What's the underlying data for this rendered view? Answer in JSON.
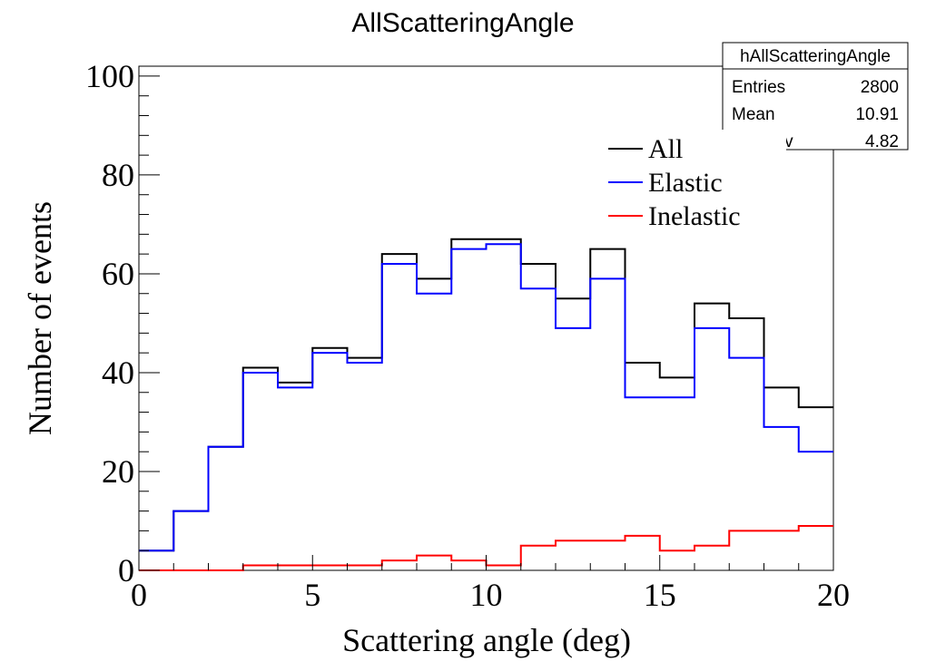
{
  "chart_data": {
    "type": "histogram",
    "title": "AllScatteringAngle",
    "xlabel": "Scattering angle (deg)",
    "ylabel": "Number of events",
    "xlim": [
      0,
      20
    ],
    "ylim": [
      0,
      102
    ],
    "bin_edges": [
      0,
      1,
      2,
      3,
      4,
      5,
      6,
      7,
      8,
      9,
      10,
      11,
      12,
      13,
      14,
      15,
      16,
      17,
      18,
      19,
      20
    ],
    "x_ticks": [
      "0",
      "5",
      "10",
      "15",
      "20"
    ],
    "y_ticks": [
      "0",
      "20",
      "40",
      "60",
      "80",
      "100"
    ],
    "grid": false,
    "legend_placement": "top-right",
    "series": [
      {
        "name": "All",
        "color": "#000000",
        "values": [
          4,
          12,
          25,
          41,
          38,
          45,
          43,
          64,
          59,
          67,
          67,
          62,
          55,
          65,
          42,
          39,
          54,
          51,
          37,
          33
        ]
      },
      {
        "name": "Elastic",
        "color": "#0000ff",
        "values": [
          4,
          12,
          25,
          40,
          37,
          44,
          42,
          62,
          56,
          65,
          66,
          57,
          49,
          59,
          35,
          35,
          49,
          43,
          29,
          24
        ]
      },
      {
        "name": "Inelastic",
        "color": "#ff0000",
        "values": [
          0,
          0,
          0,
          1,
          1,
          1,
          1,
          2,
          3,
          2,
          1,
          5,
          6,
          6,
          7,
          4,
          5,
          8,
          8,
          9
        ]
      }
    ],
    "stats_box": {
      "name": "hAllScatteringAngle",
      "rows": [
        {
          "label": "Entries",
          "value": "2800"
        },
        {
          "label": "Mean",
          "value": "10.91"
        },
        {
          "label": "Std Dev",
          "value": "4.82"
        }
      ]
    }
  }
}
